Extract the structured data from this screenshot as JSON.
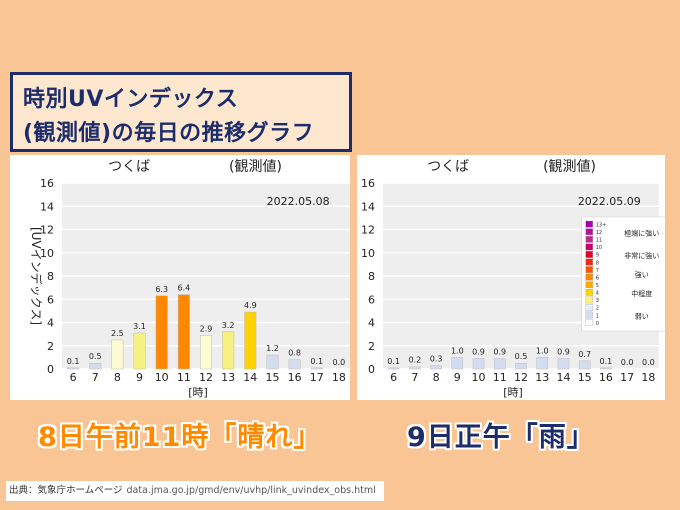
{
  "title": {
    "line1": "時別UVインデックス",
    "line2": "(観測値)の毎日の推移グラフ"
  },
  "captions": {
    "left": "8日午前11時「晴れ」",
    "right": "9日正午「雨」"
  },
  "source": {
    "label": "出典：気象庁ホームページ",
    "url": "data.jma.go.jp/gmd/env/uvhp/link_uvindex_obs.html"
  },
  "colors": {
    "background": "#f9c594",
    "title_border": "#1d2d6b",
    "caption_left": "#ff8a00",
    "caption_right": "#1d2d6b",
    "plot_bg": "#eeeeee",
    "grid": "#ffffff"
  },
  "chart_data": [
    {
      "type": "bar",
      "station": "つくば",
      "kind": "(観測値)",
      "date": "2022.05.08",
      "xlabel": "[時]",
      "ylabel": "[UVインデックス]",
      "ylim": [
        0,
        16
      ],
      "yticks": [
        0,
        2,
        4,
        6,
        8,
        10,
        12,
        14,
        16
      ],
      "grid": true,
      "categories": [
        "6",
        "7",
        "8",
        "9",
        "10",
        "11",
        "12",
        "13",
        "14",
        "15",
        "16",
        "17",
        "18"
      ],
      "values": [
        0.1,
        0.5,
        2.5,
        3.1,
        6.3,
        6.4,
        2.9,
        3.2,
        4.9,
        1.2,
        0.8,
        0.1,
        0.0
      ],
      "value_labels": [
        "0.1",
        "0.5",
        "2.5",
        "3.1",
        "6.3",
        "6.4",
        "2.9",
        "3.2",
        "4.9",
        "1.2",
        "0.8",
        "0.1",
        "0.0"
      ]
    },
    {
      "type": "bar",
      "station": "つくば",
      "kind": "(観測値)",
      "date": "2022.05.09",
      "xlabel": "[時]",
      "ylim": [
        0,
        16
      ],
      "yticks": [
        0,
        2,
        4,
        6,
        8,
        10,
        12,
        14,
        16
      ],
      "grid": true,
      "categories": [
        "6",
        "7",
        "8",
        "9",
        "10",
        "11",
        "12",
        "13",
        "14",
        "15",
        "16",
        "17",
        "18"
      ],
      "values": [
        0.1,
        0.2,
        0.3,
        1.0,
        0.9,
        0.9,
        0.5,
        1.0,
        0.9,
        0.7,
        0.1,
        0.0,
        0.0
      ],
      "value_labels": [
        "0.1",
        "0.2",
        "0.3",
        "1.0",
        "0.9",
        "0.9",
        "0.5",
        "1.0",
        "0.9",
        "0.7",
        "0.1",
        "0.0",
        "0.0"
      ],
      "legend": {
        "placement": "right",
        "levels": [
          "13+",
          "12",
          "11",
          "10",
          "9",
          "8",
          "7",
          "6",
          "5",
          "4",
          "3",
          "2",
          "1",
          "0"
        ],
        "level_colors": [
          "#aa00aa",
          "#b4149b",
          "#bf2a8c",
          "#cc0066",
          "#e0002b",
          "#f02a10",
          "#ff5500",
          "#ff8800",
          "#ffaa00",
          "#ffd200",
          "#f8f080",
          "#e6ecf5",
          "#d4dcf2",
          "#ffffff"
        ],
        "categories": [
          {
            "label": "極端に強い",
            "from": "13+",
            "to": "11"
          },
          {
            "label": "非常に強い",
            "from": "10",
            "to": "8"
          },
          {
            "label": "強い",
            "from": "7",
            "to": "6"
          },
          {
            "label": "中程度",
            "from": "5",
            "to": "3"
          },
          {
            "label": "弱い",
            "from": "2",
            "to": "0"
          }
        ]
      }
    }
  ]
}
